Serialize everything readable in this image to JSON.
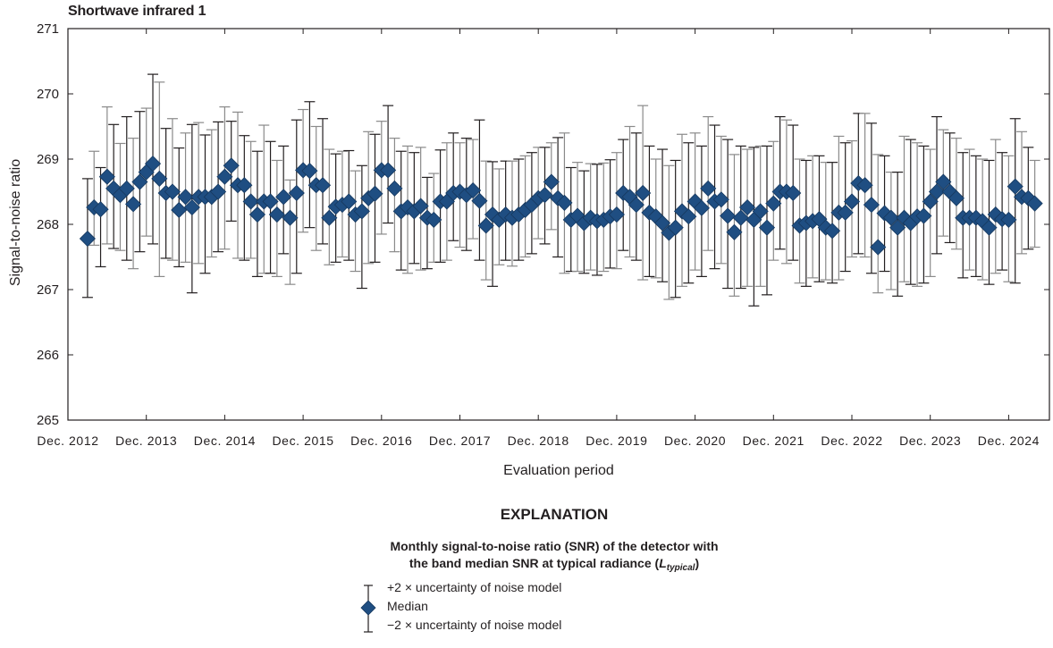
{
  "chart_data": {
    "type": "scatter",
    "title": "Shortwave infrared 1",
    "xlabel": "Evaluation period",
    "ylabel": "Signal-to-noise ratio",
    "ylim": [
      265,
      271
    ],
    "yticks": [
      265,
      266,
      267,
      268,
      269,
      270,
      271
    ],
    "xticks": [
      "Dec. 2012",
      "Dec. 2013",
      "Dec. 2014",
      "Dec. 2015",
      "Dec. 2016",
      "Dec. 2017",
      "Dec. 2018",
      "Dec. 2019",
      "Dec. 2020",
      "Dec. 2021",
      "Dec. 2022",
      "Dec. 2023",
      "Dec. 2024"
    ],
    "grid": false,
    "legend_position": "below",
    "start_month_index": 3,
    "series": [
      {
        "name": "Median",
        "marker": "diamond",
        "color": "#1f4e82",
        "values": [
          267.78,
          268.26,
          268.23,
          268.73,
          268.55,
          268.45,
          268.55,
          268.31,
          268.65,
          268.8,
          268.93,
          268.7,
          268.48,
          268.5,
          268.22,
          268.42,
          268.26,
          268.42,
          268.42,
          268.42,
          268.5,
          268.73,
          268.9,
          268.6,
          268.6,
          268.35,
          268.15,
          268.35,
          268.35,
          268.15,
          268.42,
          268.1,
          268.48,
          268.83,
          268.82,
          268.6,
          268.6,
          268.1,
          268.27,
          268.3,
          268.35,
          268.15,
          268.2,
          268.4,
          268.47,
          268.83,
          268.83,
          268.55,
          268.2,
          268.26,
          268.2,
          268.28,
          268.1,
          268.07,
          268.35,
          268.35,
          268.48,
          268.5,
          268.45,
          268.52,
          268.36,
          267.98,
          268.15,
          268.07,
          268.15,
          268.1,
          268.15,
          268.22,
          268.3,
          268.4,
          268.45,
          268.65,
          268.4,
          268.33,
          268.07,
          268.13,
          268.02,
          268.1,
          268.05,
          268.07,
          268.12,
          268.15,
          268.48,
          268.42,
          268.3,
          268.48,
          268.18,
          268.12,
          268.02,
          267.87,
          267.95,
          268.2,
          268.12,
          268.35,
          268.25,
          268.55,
          268.35,
          268.38,
          268.13,
          267.88,
          268.1,
          268.26,
          268.07,
          268.2,
          267.95,
          268.32,
          268.5,
          268.5,
          268.48,
          267.98,
          268.02,
          268.05,
          268.08,
          267.95,
          267.9,
          268.18,
          268.18,
          268.35,
          268.63,
          268.6,
          268.3,
          267.65,
          268.17,
          268.1,
          267.95,
          268.1,
          268.02,
          268.12,
          268.13,
          268.35,
          268.5,
          268.65,
          268.5,
          268.4,
          268.1,
          268.1,
          268.1,
          268.05,
          267.95,
          268.15,
          268.08,
          268.07,
          268.58,
          268.42,
          268.4,
          268.32
        ]
      },
      {
        "name": "+2 × uncertainty of noise model",
        "values": [
          268.7,
          269.12,
          268.87,
          269.8,
          269.53,
          269.24,
          269.65,
          269.32,
          269.73,
          269.78,
          270.3,
          270.18,
          269.47,
          269.62,
          269.17,
          269.4,
          269.53,
          269.56,
          269.37,
          269.45,
          269.57,
          269.8,
          269.58,
          269.72,
          269.36,
          269.27,
          269.12,
          269.52,
          269.27,
          268.98,
          269.2,
          268.68,
          269.6,
          269.76,
          269.88,
          269.5,
          269.62,
          269.15,
          269.08,
          269.12,
          269.13,
          268.82,
          268.9,
          269.42,
          269.38,
          269.58,
          269.82,
          269.32,
          269.12,
          269.2,
          269.1,
          269.18,
          268.72,
          268.78,
          269.14,
          269.25,
          269.4,
          269.25,
          269.32,
          269.3,
          269.6,
          268.97,
          268.96,
          268.85,
          268.97,
          268.97,
          269.0,
          269.05,
          269.1,
          269.18,
          269.18,
          269.25,
          269.33,
          269.4,
          268.87,
          268.95,
          268.82,
          268.93,
          268.92,
          268.94,
          268.99,
          269.1,
          269.3,
          269.5,
          269.4,
          269.82,
          269.2,
          269.0,
          269.15,
          268.9,
          268.98,
          269.38,
          269.25,
          269.4,
          269.2,
          269.65,
          269.52,
          269.35,
          269.3,
          269.07,
          269.2,
          269.15,
          269.18,
          269.2,
          269.2,
          269.27,
          269.65,
          269.6,
          269.52,
          269.0,
          268.98,
          269.05,
          269.05,
          268.95,
          268.95,
          269.35,
          269.25,
          269.28,
          269.7,
          269.7,
          269.55,
          269.07,
          269.05,
          268.8,
          268.8,
          269.35,
          269.3,
          269.25,
          269.2,
          269.15,
          269.65,
          269.45,
          269.4,
          269.32,
          269.1,
          269.15,
          269.05,
          269.0,
          268.98,
          269.3,
          269.1,
          269.05,
          269.62,
          269.42,
          269.18,
          268.98
        ]
      },
      {
        "name": "−2 × uncertainty of noise model",
        "values": [
          266.88,
          267.68,
          267.35,
          267.7,
          267.63,
          267.6,
          267.45,
          267.32,
          267.58,
          267.82,
          267.7,
          267.2,
          267.48,
          267.45,
          267.35,
          267.42,
          266.95,
          267.4,
          267.25,
          267.5,
          267.58,
          267.62,
          268.05,
          267.48,
          267.45,
          267.48,
          267.2,
          267.25,
          267.25,
          267.2,
          267.55,
          267.08,
          267.25,
          267.88,
          267.95,
          267.6,
          267.7,
          267.38,
          267.42,
          267.5,
          267.45,
          267.28,
          267.02,
          267.4,
          267.42,
          267.85,
          268.02,
          267.58,
          267.3,
          267.25,
          267.4,
          267.3,
          267.32,
          267.42,
          267.42,
          267.45,
          267.75,
          267.65,
          267.6,
          267.78,
          267.45,
          267.15,
          267.05,
          267.38,
          267.45,
          267.36,
          267.45,
          267.5,
          267.55,
          267.78,
          267.7,
          267.92,
          267.5,
          267.25,
          267.28,
          267.28,
          267.25,
          267.3,
          267.22,
          267.28,
          267.33,
          267.32,
          267.6,
          267.5,
          267.45,
          267.15,
          267.2,
          267.18,
          267.12,
          266.85,
          266.88,
          267.05,
          267.1,
          267.3,
          267.2,
          267.6,
          267.32,
          267.4,
          267.02,
          266.9,
          267.02,
          267.05,
          266.75,
          267.05,
          266.92,
          267.45,
          267.62,
          267.4,
          267.45,
          267.1,
          267.05,
          267.18,
          267.12,
          267.15,
          267.1,
          267.15,
          267.28,
          267.5,
          267.55,
          267.5,
          267.25,
          266.95,
          267.28,
          267.0,
          266.9,
          267.12,
          267.08,
          267.05,
          267.1,
          267.2,
          267.55,
          267.82,
          267.72,
          267.62,
          267.18,
          267.3,
          267.2,
          267.15,
          267.08,
          267.25,
          267.3,
          267.12,
          267.1,
          267.55,
          267.62,
          267.65
        ]
      }
    ]
  },
  "legend": {
    "heading": "EXPLANATION",
    "description_line1": "Monthly signal-to-noise ratio (SNR) of the detector with",
    "description_line2_prefix": "the band median SNR at typical radiance (",
    "description_symbol": "L",
    "description_subscript": "typical",
    "description_suffix": ")",
    "items": {
      "upper": "+2 × uncertainty of noise model",
      "median": "Median",
      "lower": "−2 × uncertainty of noise model"
    },
    "marker_color": "#1f4e82"
  }
}
